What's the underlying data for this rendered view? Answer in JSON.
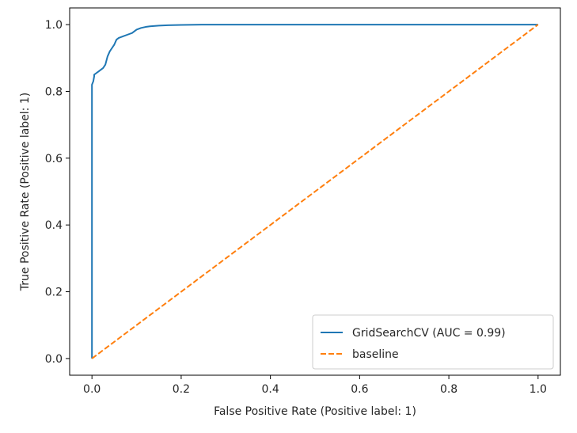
{
  "chart_data": {
    "type": "line",
    "title": "",
    "xlabel": "False Positive Rate (Positive label: 1)",
    "ylabel": "True Positive Rate (Positive label: 1)",
    "xlim": [
      -0.05,
      1.05
    ],
    "ylim": [
      -0.05,
      1.05
    ],
    "x_ticks": [
      0.0,
      0.2,
      0.4,
      0.6,
      0.8,
      1.0
    ],
    "y_ticks": [
      0.0,
      0.2,
      0.4,
      0.6,
      0.8,
      1.0
    ],
    "x_tick_labels": [
      "0.0",
      "0.2",
      "0.4",
      "0.6",
      "0.8",
      "1.0"
    ],
    "y_tick_labels": [
      "0.0",
      "0.2",
      "0.4",
      "0.6",
      "0.8",
      "1.0"
    ],
    "grid": false,
    "legend_position": "lower-right",
    "series": [
      {
        "name": "GridSearchCV (AUC = 0.99)",
        "color": "#1f77b4",
        "style": "solid",
        "x": [
          0.0,
          0.0,
          0.0,
          0.003,
          0.005,
          0.005,
          0.01,
          0.015,
          0.02,
          0.025,
          0.03,
          0.032,
          0.035,
          0.04,
          0.045,
          0.05,
          0.055,
          0.06,
          0.07,
          0.08,
          0.09,
          0.1,
          0.11,
          0.12,
          0.13,
          0.15,
          0.17,
          0.2,
          0.25,
          1.0
        ],
        "y": [
          0.0,
          0.5,
          0.82,
          0.83,
          0.845,
          0.85,
          0.855,
          0.86,
          0.865,
          0.87,
          0.88,
          0.89,
          0.905,
          0.92,
          0.93,
          0.94,
          0.955,
          0.96,
          0.965,
          0.97,
          0.975,
          0.985,
          0.99,
          0.993,
          0.995,
          0.997,
          0.998,
          0.999,
          1.0,
          1.0
        ]
      },
      {
        "name": "baseline",
        "color": "#ff7f0e",
        "style": "dashed",
        "x": [
          0.0,
          1.0
        ],
        "y": [
          0.0,
          1.0
        ]
      }
    ]
  }
}
